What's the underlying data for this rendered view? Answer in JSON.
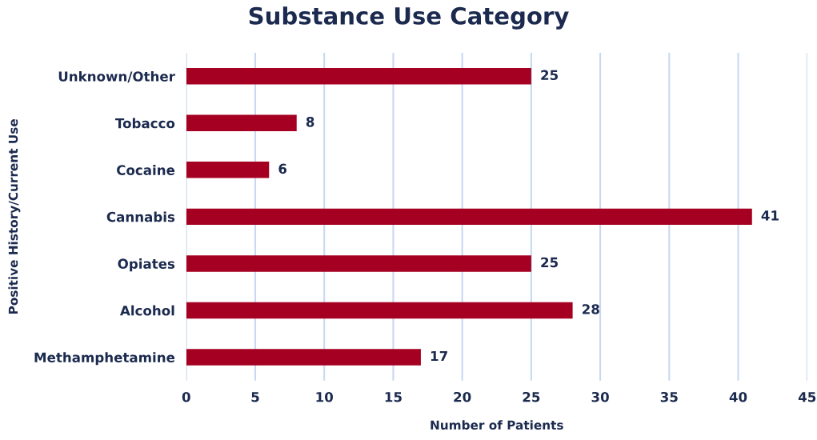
{
  "chart_data": {
    "type": "bar",
    "orientation": "horizontal",
    "title": "Substance Use Category",
    "xlabel": "Number of Patients",
    "ylabel": "Positive History/Current Use",
    "categories": [
      "Unknown/Other",
      "Tobacco",
      "Cocaine",
      "Cannabis",
      "Opiates",
      "Alcohol",
      "Methamphetamine"
    ],
    "values": [
      25,
      8,
      6,
      41,
      25,
      28,
      17
    ],
    "color": "#a50021",
    "xlim": [
      0,
      45
    ],
    "xticks": [
      0,
      5,
      10,
      15,
      20,
      25,
      30,
      35,
      40,
      45
    ],
    "grid": "x",
    "data_labels": true
  }
}
